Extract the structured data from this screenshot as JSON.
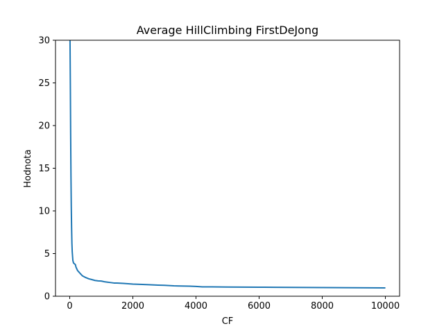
{
  "chart_data": {
    "type": "line",
    "title": "Average HillClimbing FirstDeJong",
    "xlabel": "CF",
    "ylabel": "Hodnota",
    "xlim": [
      -450,
      10450
    ],
    "ylim": [
      0,
      30
    ],
    "xticks": [
      0,
      2000,
      4000,
      6000,
      8000,
      10000
    ],
    "yticks": [
      0,
      5,
      10,
      15,
      20,
      25,
      30
    ],
    "grid": false,
    "series": [
      {
        "color": "#1f77b4",
        "x": [
          0,
          10,
          20,
          30,
          40,
          50,
          60,
          70,
          80,
          100,
          120,
          150,
          180,
          200,
          250,
          300,
          350,
          400,
          450,
          500,
          600,
          700,
          800,
          900,
          1000,
          1100,
          1200,
          1300,
          1400,
          1500,
          1700,
          2000,
          2300,
          2500,
          2800,
          3000,
          3300,
          3500,
          3800,
          4000,
          4200,
          4500,
          5000,
          5500,
          6000,
          6500,
          7000,
          7500,
          8000,
          8500,
          9000,
          9500,
          10000
        ],
        "y": [
          30,
          30,
          25,
          19,
          14,
          10.5,
          8,
          6.2,
          5.2,
          4.2,
          3.9,
          3.8,
          3.7,
          3.4,
          3.0,
          2.8,
          2.6,
          2.4,
          2.3,
          2.2,
          2.05,
          1.95,
          1.85,
          1.8,
          1.78,
          1.7,
          1.65,
          1.6,
          1.55,
          1.55,
          1.5,
          1.42,
          1.38,
          1.35,
          1.3,
          1.28,
          1.22,
          1.2,
          1.18,
          1.15,
          1.1,
          1.1,
          1.08,
          1.07,
          1.06,
          1.05,
          1.04,
          1.03,
          1.02,
          1.01,
          1.0,
          0.99,
          0.98
        ]
      }
    ]
  }
}
